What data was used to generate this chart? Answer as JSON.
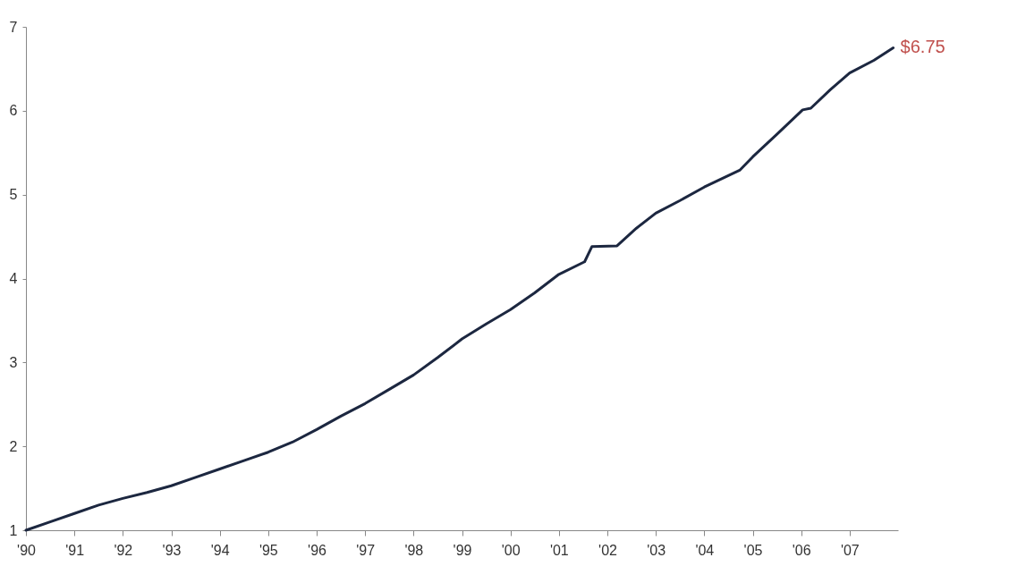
{
  "chart_data": {
    "type": "line",
    "x": [
      1990.0,
      1990.5,
      1991.0,
      1991.5,
      1992.0,
      1992.5,
      1993.0,
      1993.5,
      1994.0,
      1994.5,
      1995.0,
      1995.5,
      1996.0,
      1996.5,
      1997.0,
      1997.5,
      1998.0,
      1998.5,
      1999.0,
      1999.5,
      2000.0,
      2000.5,
      2001.0,
      2001.53,
      2001.68,
      2002.2,
      2002.6,
      2003.0,
      2003.5,
      2004.0,
      2004.73,
      2005.0,
      2005.5,
      2006.03,
      2006.2,
      2006.6,
      2007.0,
      2007.5,
      2007.9
    ],
    "series": [
      {
        "color": "#1c2740",
        "values": [
          1.0,
          1.1,
          1.2,
          1.3,
          1.38,
          1.45,
          1.53,
          1.63,
          1.73,
          1.83,
          1.93,
          2.05,
          2.2,
          2.36,
          2.51,
          2.68,
          2.85,
          3.06,
          3.28,
          3.46,
          3.63,
          3.83,
          4.05,
          4.2,
          4.38,
          4.39,
          4.6,
          4.78,
          4.93,
          5.09,
          5.29,
          5.45,
          5.72,
          6.01,
          6.03,
          6.25,
          6.45,
          6.6,
          6.75
        ]
      }
    ],
    "xlim": [
      1990,
      2008
    ],
    "xticks": [
      {
        "value": 1990,
        "label": "'90"
      },
      {
        "value": 1991,
        "label": "'91"
      },
      {
        "value": 1992,
        "label": "'92"
      },
      {
        "value": 1993,
        "label": "'93"
      },
      {
        "value": 1994,
        "label": "'94"
      },
      {
        "value": 1995,
        "label": "'95"
      },
      {
        "value": 1996,
        "label": "'96"
      },
      {
        "value": 1997,
        "label": "'97"
      },
      {
        "value": 1998,
        "label": "'98"
      },
      {
        "value": 1999,
        "label": "'99"
      },
      {
        "value": 2000,
        "label": "'00"
      },
      {
        "value": 2001,
        "label": "'01"
      },
      {
        "value": 2002,
        "label": "'02"
      },
      {
        "value": 2003,
        "label": "'03"
      },
      {
        "value": 2004,
        "label": "'04"
      },
      {
        "value": 2005,
        "label": "'05"
      },
      {
        "value": 2006,
        "label": "'06"
      },
      {
        "value": 2007,
        "label": "'07"
      }
    ],
    "ylim": [
      1,
      7
    ],
    "yticks": [
      1,
      2,
      3,
      4,
      5,
      6,
      7
    ],
    "grid": false,
    "marker": "none",
    "line_style": "solid",
    "annotations": [
      {
        "text": "$6.75",
        "x": 2007.9,
        "y": 6.75
      }
    ]
  }
}
